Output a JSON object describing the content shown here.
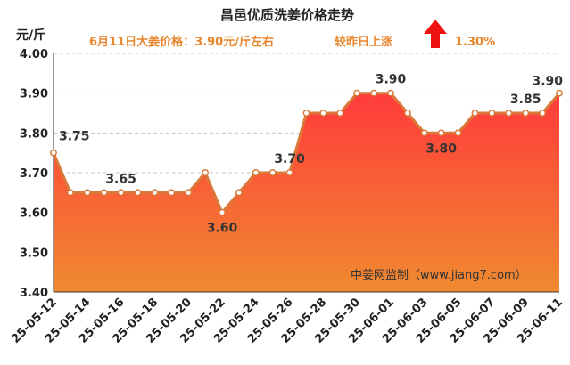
{
  "chart_data": {
    "type": "area",
    "title": "昌邑优质洗姜价格走势",
    "subtitle": "6月11日大姜价格：3.90元/斤左右",
    "compare_text": "较昨日上涨",
    "change_value": "1.30%",
    "ylabel": "元/斤",
    "ylim": [
      3.4,
      4.0
    ],
    "yticks": [
      "4.00",
      "3.90",
      "3.80",
      "3.70",
      "3.60",
      "3.50",
      "3.40"
    ],
    "grid": "horizontal dashed",
    "watermark": "中姜网监制（www.jiang7.com）",
    "x": [
      "25-05-12",
      "25-05-13",
      "25-05-14",
      "25-05-15",
      "25-05-16",
      "25-05-17",
      "25-05-18",
      "25-05-19",
      "25-05-20",
      "25-05-21",
      "25-05-22",
      "25-05-23",
      "25-05-24",
      "25-05-25",
      "25-05-26",
      "25-05-27",
      "25-05-28",
      "25-05-29",
      "25-05-30",
      "25-05-31",
      "25-06-01",
      "25-06-02",
      "25-06-03",
      "25-06-04",
      "25-06-05",
      "25-06-06",
      "25-06-07",
      "25-06-08",
      "25-06-09",
      "25-06-10",
      "25-06-11"
    ],
    "xtick_labels": [
      "25-05-12",
      "25-05-14",
      "25-05-16",
      "25-05-18",
      "25-05-20",
      "25-05-22",
      "25-05-24",
      "25-05-26",
      "25-05-28",
      "25-05-30",
      "25-06-01",
      "25-06-03",
      "25-06-05",
      "25-06-07",
      "25-06-09",
      "25-06-11"
    ],
    "values": [
      3.75,
      3.65,
      3.65,
      3.65,
      3.65,
      3.65,
      3.65,
      3.65,
      3.65,
      3.7,
      3.6,
      3.65,
      3.7,
      3.7,
      3.7,
      3.85,
      3.85,
      3.85,
      3.9,
      3.9,
      3.9,
      3.85,
      3.8,
      3.8,
      3.8,
      3.85,
      3.85,
      3.85,
      3.85,
      3.85,
      3.9
    ],
    "data_labels": [
      {
        "date": "25-05-12",
        "text": "3.75"
      },
      {
        "date": "25-05-16",
        "text": "3.65"
      },
      {
        "date": "25-05-22",
        "text": "3.60"
      },
      {
        "date": "25-05-26",
        "text": "3.70"
      },
      {
        "date": "25-06-01",
        "text": "3.90"
      },
      {
        "date": "25-06-04",
        "text": "3.80"
      },
      {
        "date": "25-06-09",
        "text": "3.85"
      },
      {
        "date": "25-06-11",
        "text": "3.90"
      }
    ],
    "colors": {
      "line": "#d9793a",
      "area_top": "#ff3b3b",
      "area_bottom": "#f08a30",
      "accent_text": "#e8862e",
      "up_arrow": "#ee1111"
    }
  }
}
